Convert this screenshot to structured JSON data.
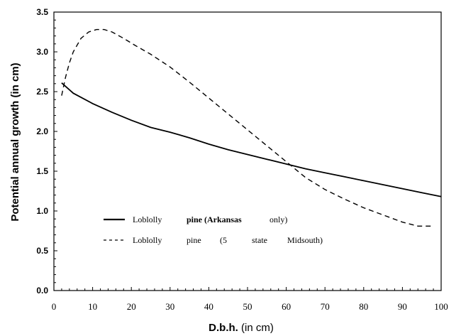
{
  "chart_data": {
    "type": "line",
    "title": "",
    "xlabel_bold": "D.b.h.",
    "xlabel_rest": " (in cm)",
    "ylabel": "Potential annual growth (in cm)",
    "xlim": [
      0,
      100
    ],
    "ylim": [
      0,
      3.5
    ],
    "x_ticks": [
      "0",
      "10",
      "20",
      "30",
      "40",
      "50",
      "60",
      "70",
      "80",
      "90",
      "100"
    ],
    "y_ticks": [
      "0.0",
      "0.5",
      "1.0",
      "1.5",
      "2.0",
      "2.5",
      "3.0",
      "3.5"
    ],
    "grid": false,
    "legend_position": "lower-left",
    "series": [
      {
        "legend_parts": [
          "Loblolly",
          "pine (Arkansas",
          "only)"
        ],
        "style": "solid",
        "x": [
          2,
          5,
          10,
          15,
          20,
          25,
          30,
          35,
          40,
          45,
          50,
          55,
          60,
          65,
          70,
          75,
          80,
          85,
          90,
          95,
          100
        ],
        "y": [
          2.61,
          2.48,
          2.35,
          2.24,
          2.14,
          2.05,
          1.99,
          1.92,
          1.84,
          1.77,
          1.71,
          1.65,
          1.59,
          1.53,
          1.48,
          1.43,
          1.38,
          1.33,
          1.28,
          1.23,
          1.18
        ]
      },
      {
        "legend_parts": [
          "Loblolly",
          "pine",
          "(5",
          "state",
          "Midsouth)"
        ],
        "style": "dashed",
        "x": [
          2,
          3,
          4,
          5,
          7,
          9,
          11,
          13,
          15,
          18,
          21,
          25,
          30,
          35,
          40,
          45,
          50,
          55,
          60,
          65,
          70,
          75,
          80,
          85,
          90,
          94,
          98
        ],
        "y": [
          2.45,
          2.68,
          2.86,
          3.0,
          3.17,
          3.25,
          3.28,
          3.28,
          3.25,
          3.17,
          3.08,
          2.97,
          2.81,
          2.62,
          2.42,
          2.22,
          2.02,
          1.82,
          1.62,
          1.42,
          1.27,
          1.15,
          1.04,
          0.95,
          0.86,
          0.81,
          0.81
        ]
      }
    ]
  }
}
